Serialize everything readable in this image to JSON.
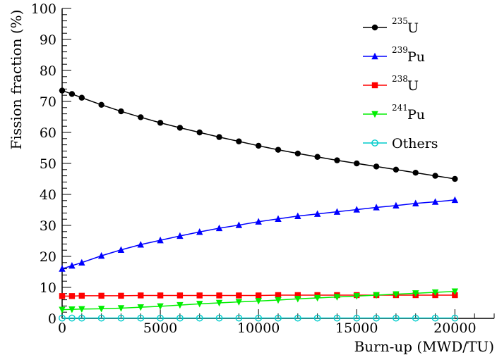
{
  "chart_data": {
    "type": "line",
    "xlabel": "Burn-up (MWD/TU)",
    "ylabel": "Fission fraction (%)",
    "xlim": [
      0,
      22000
    ],
    "ylim": [
      0,
      100
    ],
    "xticks": [
      0,
      5000,
      10000,
      15000,
      20000
    ],
    "xtick_labels": [
      "0",
      "5000",
      "10000",
      "15000",
      "20000"
    ],
    "yticks": [
      0,
      10,
      20,
      30,
      40,
      50,
      60,
      70,
      80,
      90,
      100
    ],
    "ytick_labels": [
      "0",
      "10",
      "20",
      "30",
      "40",
      "50",
      "60",
      "70",
      "80",
      "90",
      "100"
    ],
    "grid": false,
    "legend_position": "top-right",
    "x": [
      0,
      500,
      1000,
      2000,
      3000,
      4000,
      5000,
      6000,
      7000,
      8000,
      9000,
      10000,
      11000,
      12000,
      13000,
      14000,
      15000,
      16000,
      17000,
      18000,
      19000,
      20000
    ],
    "series": [
      {
        "name": "U",
        "sup": "235",
        "color": "#000000",
        "marker": "circle",
        "values": [
          73.5,
          72.4,
          71.2,
          68.9,
          66.8,
          64.9,
          63.1,
          61.5,
          60.0,
          58.5,
          57.1,
          55.7,
          54.4,
          53.2,
          52.1,
          51.0,
          50.0,
          49.0,
          48.0,
          47.0,
          46.0,
          45.0
        ]
      },
      {
        "name": "Pu",
        "sup": "239",
        "color": "#0000ff",
        "marker": "triangle-up",
        "values": [
          16.0,
          17.0,
          18.0,
          20.2,
          22.1,
          23.8,
          25.2,
          26.6,
          27.9,
          29.1,
          30.1,
          31.2,
          32.1,
          33.0,
          33.7,
          34.4,
          35.1,
          35.8,
          36.4,
          37.1,
          37.6,
          38.2
        ]
      },
      {
        "name": "U",
        "sup": "238",
        "color": "#ff0000",
        "marker": "square",
        "values": [
          7.2,
          7.2,
          7.3,
          7.3,
          7.3,
          7.4,
          7.4,
          7.4,
          7.4,
          7.4,
          7.4,
          7.4,
          7.5,
          7.5,
          7.5,
          7.5,
          7.5,
          7.5,
          7.5,
          7.5,
          7.5,
          7.5
        ]
      },
      {
        "name": "Pu",
        "sup": "241",
        "color": "#00ee00",
        "marker": "triangle-down",
        "values": [
          2.8,
          2.9,
          3.0,
          3.1,
          3.3,
          3.6,
          3.9,
          4.3,
          4.7,
          5.0,
          5.3,
          5.6,
          5.9,
          6.3,
          6.6,
          6.9,
          7.2,
          7.5,
          7.8,
          8.1,
          8.4,
          8.7
        ]
      },
      {
        "name": "Others",
        "sup": "",
        "color": "#00cccc",
        "marker": "open-circle",
        "values": [
          0.1,
          0.1,
          0.1,
          0.1,
          0.1,
          0.1,
          0.1,
          0.1,
          0.1,
          0.1,
          0.1,
          0.1,
          0.1,
          0.1,
          0.1,
          0.1,
          0.1,
          0.1,
          0.1,
          0.1,
          0.1,
          0.1
        ]
      }
    ]
  }
}
